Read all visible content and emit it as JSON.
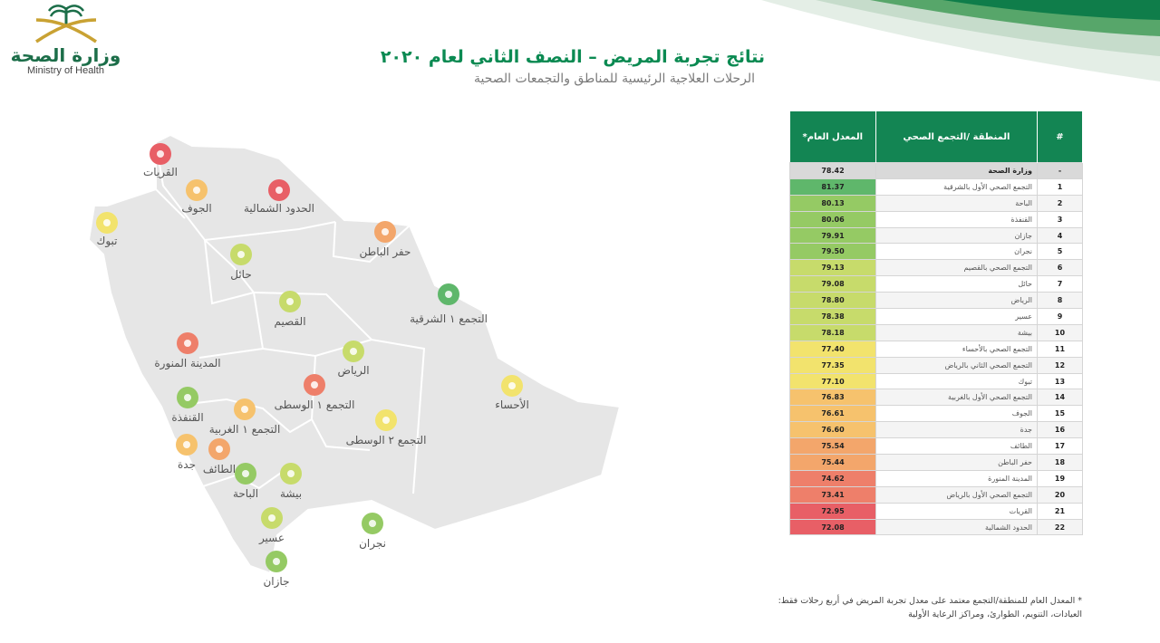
{
  "header": {
    "logo_ar": "وزارة الصحة",
    "logo_en": "Ministry of Health",
    "title": "نتائج تجربة المريض – النصف الثاني لعام ٢٠٢٠",
    "subtitle": "الرحلات العلاجية الرئيسية للمناطق والتجمعات الصحية"
  },
  "colors": {
    "brand_green": "#138553",
    "map_fill": "#e6e6e6",
    "map_border": "#ffffff",
    "scale": [
      "#5fb76b",
      "#95ca64",
      "#c7db6b",
      "#f2e36d",
      "#f6c26d",
      "#f3a66b",
      "#ee7f6a",
      "#e85f66"
    ]
  },
  "chart_data": {
    "type": "table",
    "columns": [
      "#",
      "المنطقة /التجمع الصحي",
      "المعدل العام*"
    ],
    "ministry_row": {
      "rank": "-",
      "name": "وزارة الصحة",
      "value": 78.42
    },
    "rows": [
      {
        "rank": 1,
        "name": "التجمع الصحي الأول بالشرقية",
        "value": 81.37
      },
      {
        "rank": 2,
        "name": "الباحة",
        "value": 80.13
      },
      {
        "rank": 3,
        "name": "القنفذة",
        "value": 80.06
      },
      {
        "rank": 4,
        "name": "جازان",
        "value": 79.91
      },
      {
        "rank": 5,
        "name": "نجران",
        "value": 79.5
      },
      {
        "rank": 6,
        "name": "التجمع الصحي بالقصيم",
        "value": 79.13
      },
      {
        "rank": 7,
        "name": "حائل",
        "value": 79.08
      },
      {
        "rank": 8,
        "name": "الرياض",
        "value": 78.8
      },
      {
        "rank": 9,
        "name": "عسير",
        "value": 78.38
      },
      {
        "rank": 10,
        "name": "بيشة",
        "value": 78.18
      },
      {
        "rank": 11,
        "name": "التجمع الصحي بالأحساء",
        "value": 77.4
      },
      {
        "rank": 12,
        "name": "التجمع الصحي الثاني بالرياض",
        "value": 77.35
      },
      {
        "rank": 13,
        "name": "تبوك",
        "value": 77.1
      },
      {
        "rank": 14,
        "name": "التجمع الصحي الأول بالغربية",
        "value": 76.83
      },
      {
        "rank": 15,
        "name": "الجوف",
        "value": 76.61
      },
      {
        "rank": 16,
        "name": "جدة",
        "value": 76.6
      },
      {
        "rank": 17,
        "name": "الطائف",
        "value": 75.54
      },
      {
        "rank": 18,
        "name": "حفر الباطن",
        "value": 75.44
      },
      {
        "rank": 19,
        "name": "المدينة المنورة",
        "value": 74.62
      },
      {
        "rank": 20,
        "name": "التجمع الصحي الأول بالرياض",
        "value": 73.41
      },
      {
        "rank": 21,
        "name": "القريات",
        "value": 72.95
      },
      {
        "rank": 22,
        "name": "الحدود الشمالية",
        "value": 72.08
      }
    ]
  },
  "map": {
    "markers": [
      {
        "label": "القريات",
        "value": 72.95
      },
      {
        "label": "الجوف",
        "value": 76.61
      },
      {
        "label": "الحدود الشمالية",
        "value": 72.08
      },
      {
        "label": "تبوك",
        "value": 77.1
      },
      {
        "label": "حائل",
        "value": 79.08
      },
      {
        "label": "حفر الباطن",
        "value": 75.44
      },
      {
        "label": "القصيم",
        "value": 79.13
      },
      {
        "label": "التجمع ١ الشرقية",
        "value": 81.37
      },
      {
        "label": "المدينة المنورة",
        "value": 74.62
      },
      {
        "label": "الرياض",
        "value": 78.8
      },
      {
        "label": "التجمع ١ الوسطى",
        "value": 73.41
      },
      {
        "label": "الأحساء",
        "value": 77.4
      },
      {
        "label": "القنفذة",
        "value": 80.06
      },
      {
        "label": "التجمع ١ الغربية",
        "value": 76.83
      },
      {
        "label": "التجمع ٢ الوسطى",
        "value": 77.35
      },
      {
        "label": "جدة",
        "value": 76.6
      },
      {
        "label": "الطائف",
        "value": 75.54
      },
      {
        "label": "الباحة",
        "value": 80.13
      },
      {
        "label": "بيشة",
        "value": 78.18
      },
      {
        "label": "عسير",
        "value": 78.38
      },
      {
        "label": "نجران",
        "value": 79.5
      },
      {
        "label": "جازان",
        "value": 79.91
      }
    ]
  },
  "footnote": {
    "line1": "* المعدل العام للمنطقة/التجمع معتمد على معدل تجربة المريض في أربع رحلات فقط:",
    "line2": "العيادات، التنويم، الطوارئ، ومراكز الرعاية الأولية"
  }
}
